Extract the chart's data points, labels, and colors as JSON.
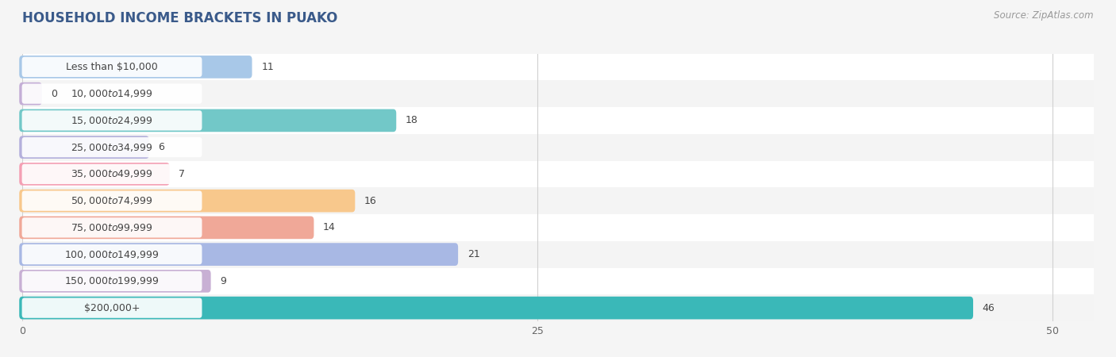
{
  "title": "HOUSEHOLD INCOME BRACKETS IN PUAKO",
  "source": "Source: ZipAtlas.com",
  "categories": [
    "Less than $10,000",
    "$10,000 to $14,999",
    "$15,000 to $24,999",
    "$25,000 to $34,999",
    "$35,000 to $49,999",
    "$50,000 to $74,999",
    "$75,000 to $99,999",
    "$100,000 to $149,999",
    "$150,000 to $199,999",
    "$200,000+"
  ],
  "values": [
    11,
    0,
    18,
    6,
    7,
    16,
    14,
    21,
    9,
    46
  ],
  "bar_colors": [
    "#a8c8e8",
    "#c4aed6",
    "#72c8c8",
    "#b4b0dc",
    "#f4a0b4",
    "#f8c88c",
    "#f0a898",
    "#a8b8e4",
    "#c8b0d4",
    "#3ab8b8"
  ],
  "row_colors": [
    "#ffffff",
    "#f4f4f4"
  ],
  "xlim": [
    0,
    52
  ],
  "xticks": [
    0,
    25,
    50
  ],
  "figsize": [
    14.06,
    4.5
  ],
  "dpi": 100,
  "bg_color": "#f5f5f5",
  "plot_bg": "#ffffff",
  "title_fontsize": 12,
  "label_fontsize": 9,
  "value_fontsize": 9,
  "source_fontsize": 8.5,
  "tick_fontsize": 9
}
